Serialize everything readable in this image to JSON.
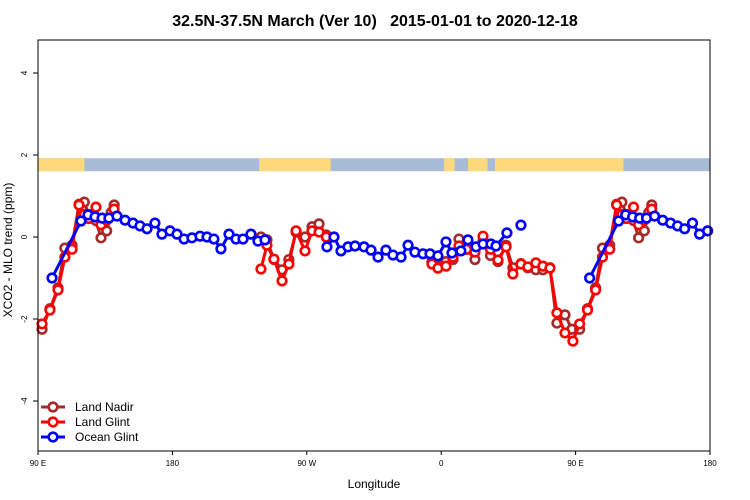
{
  "chart_data": {
    "type": "line",
    "title": "32.5N-37.5N March (Ver 10)   2015-01-01 to 2020-12-18",
    "xlabel": "Longitude",
    "ylabel": "XCO2 - MLO trend (ppm)",
    "xlim": [
      90,
      540
    ],
    "ylim": [
      -5.3,
      4.8
    ],
    "wrap_note": "points with longitude <= 180 repeat at longitude + 360",
    "x_ticks": [
      {
        "value": 90,
        "label": "90 E"
      },
      {
        "value": 180,
        "label": "180"
      },
      {
        "value": 270,
        "label": "90 W"
      },
      {
        "value": 360,
        "label": "0"
      },
      {
        "value": 450,
        "label": "90 E"
      },
      {
        "value": 540,
        "label": "180"
      }
    ],
    "y_ticks": [
      {
        "value": 4,
        "label": "4"
      },
      {
        "value": 2,
        "label": "2"
      },
      {
        "value": 0,
        "label": "0"
      },
      {
        "value": -2,
        "label": "-2"
      },
      {
        "value": -4,
        "label": "-4"
      }
    ],
    "land_mask": {
      "land_color": "#FFD97A",
      "ocean_color": "#A8BCD8",
      "level": 1.8,
      "land_lon_ranges": [
        [
          90,
          121
        ],
        [
          238,
          286
        ],
        [
          362,
          369
        ],
        [
          378,
          391
        ],
        [
          396,
          482
        ]
      ]
    },
    "legend_position": "bottom-left",
    "series": [
      {
        "name": "Land Nadir",
        "color": "#A52A2A",
        "points": [
          [
            92.7,
            -2.25
          ],
          [
            98,
            -1.75
          ],
          [
            103.4,
            -1.24
          ],
          [
            108,
            -0.27
          ],
          [
            112.8,
            -0.2
          ],
          [
            117.5,
            0.8
          ],
          [
            121,
            0.85
          ],
          [
            124,
            0.55
          ],
          [
            128.8,
            0.4
          ],
          [
            132.2,
            -0.02
          ],
          [
            136,
            0.15
          ],
          [
            139,
            0.6
          ],
          [
            141,
            0.78
          ],
          [
            null,
            null
          ],
          [
            239.3,
            0.0
          ],
          [
            243.3,
            -0.07
          ],
          [
            248,
            -0.55
          ],
          [
            253.4,
            -0.8
          ],
          [
            258,
            -0.55
          ],
          [
            262.8,
            0.12
          ],
          [
            268.8,
            0.0
          ],
          [
            273.5,
            0.25
          ],
          [
            278.2,
            0.32
          ],
          [
            283,
            0.05
          ],
          [
            null,
            null
          ],
          [
            353.8,
            -0.6
          ],
          [
            357.8,
            -0.7
          ],
          [
            363.2,
            -0.6
          ],
          [
            367.9,
            -0.55
          ],
          [
            371.9,
            -0.05
          ],
          [
            377,
            -0.3
          ],
          [
            382.6,
            -0.55
          ],
          [
            388,
            -0.1
          ],
          [
            393,
            -0.45
          ],
          [
            398,
            -0.6
          ],
          [
            403.4,
            -0.2
          ],
          [
            408,
            -0.75
          ],
          [
            413.4,
            -0.65
          ],
          [
            418,
            -0.75
          ],
          [
            423.4,
            -0.8
          ],
          [
            428.1,
            -0.8
          ],
          [
            432.8,
            -0.75
          ],
          [
            437.5,
            -2.1
          ],
          [
            442.9,
            -1.9
          ],
          [
            447.5,
            -2.25
          ]
        ]
      },
      {
        "name": "Land Glint",
        "color": "#FF0000",
        "points": [
          [
            92.7,
            -2.12
          ],
          [
            98,
            -1.78
          ],
          [
            103.4,
            -1.29
          ],
          [
            108,
            -0.49
          ],
          [
            112.8,
            -0.3
          ],
          [
            117.5,
            0.78
          ],
          [
            121,
            0.55
          ],
          [
            124,
            0.45
          ],
          [
            128.8,
            0.73
          ],
          [
            132.2,
            0.3
          ],
          [
            136,
            0.41
          ],
          [
            140.9,
            0.68
          ],
          [
            null,
            null
          ],
          [
            239.3,
            -0.78
          ],
          [
            243.3,
            -0.2
          ],
          [
            248,
            -0.54
          ],
          [
            253.4,
            -1.07
          ],
          [
            258,
            -0.66
          ],
          [
            262.8,
            0.15
          ],
          [
            268.8,
            -0.34
          ],
          [
            273.5,
            0.15
          ],
          [
            278.2,
            0.12
          ],
          [
            283,
            0.0
          ],
          [
            null,
            null
          ],
          [
            353.8,
            -0.66
          ],
          [
            357.8,
            -0.76
          ],
          [
            363.2,
            -0.71
          ],
          [
            367.9,
            -0.49
          ],
          [
            371.9,
            -0.22
          ],
          [
            377,
            -0.3
          ],
          [
            382.6,
            -0.37
          ],
          [
            388,
            0.02
          ],
          [
            393,
            -0.3
          ],
          [
            398,
            -0.56
          ],
          [
            403.4,
            -0.24
          ],
          [
            408,
            -0.9
          ],
          [
            413.4,
            -0.66
          ],
          [
            418,
            -0.73
          ],
          [
            423.4,
            -0.63
          ],
          [
            428.1,
            -0.71
          ],
          [
            432.8,
            -0.76
          ],
          [
            437.5,
            -1.85
          ],
          [
            442.9,
            -2.34
          ],
          [
            448.2,
            -2.54
          ]
        ]
      },
      {
        "name": "Ocean Glint",
        "color": "#0000FF",
        "points": [
          [
            99.4,
            -1.0
          ],
          [
            118.8,
            0.39
          ],
          [
            123.5,
            0.54
          ],
          [
            128.2,
            0.49
          ],
          [
            132.9,
            0.46
          ],
          [
            137.5,
            0.46
          ],
          [
            142.9,
            0.51
          ],
          [
            148.3,
            0.41
          ],
          [
            153.6,
            0.34
          ],
          [
            158.3,
            0.27
          ],
          [
            163,
            0.2
          ],
          [
            168.3,
            0.34
          ],
          [
            173,
            0.07
          ],
          [
            178.4,
            0.15
          ],
          [
            183.1,
            0.07
          ],
          [
            187.8,
            -0.05
          ],
          [
            193.1,
            -0.02
          ],
          [
            198.5,
            0.02
          ],
          [
            203.2,
            0.0
          ],
          [
            207.8,
            -0.05
          ],
          [
            212.5,
            -0.29
          ],
          [
            217.9,
            0.07
          ],
          [
            222.6,
            -0.05
          ],
          [
            227.3,
            -0.05
          ],
          [
            232.6,
            0.07
          ],
          [
            237.3,
            -0.1
          ],
          [
            242,
            -0.07
          ],
          [
            null,
            null
          ],
          [
            283.5,
            -0.24
          ],
          [
            288.2,
            0.0
          ],
          [
            292.9,
            -0.34
          ],
          [
            297.6,
            -0.24
          ],
          [
            302.3,
            -0.22
          ],
          [
            308.3,
            -0.24
          ],
          [
            313,
            -0.32
          ],
          [
            317.7,
            -0.49
          ],
          [
            323,
            -0.32
          ],
          [
            327.7,
            -0.44
          ],
          [
            333.1,
            -0.49
          ],
          [
            337.8,
            -0.2
          ],
          [
            342.4,
            -0.37
          ],
          [
            347.8,
            -0.41
          ],
          [
            352.5,
            -0.41
          ],
          [
            357.8,
            -0.46
          ],
          [
            363.2,
            -0.12
          ],
          [
            367.2,
            -0.39
          ],
          [
            373.2,
            -0.34
          ],
          [
            377.9,
            -0.07
          ],
          [
            383.3,
            -0.24
          ],
          [
            388,
            -0.17
          ],
          [
            393.3,
            -0.17
          ],
          [
            396.7,
            -0.22
          ],
          [
            404,
            0.1
          ],
          [
            null,
            null
          ],
          [
            413.4,
            0.29
          ],
          [
            null,
            null
          ]
        ]
      }
    ]
  }
}
